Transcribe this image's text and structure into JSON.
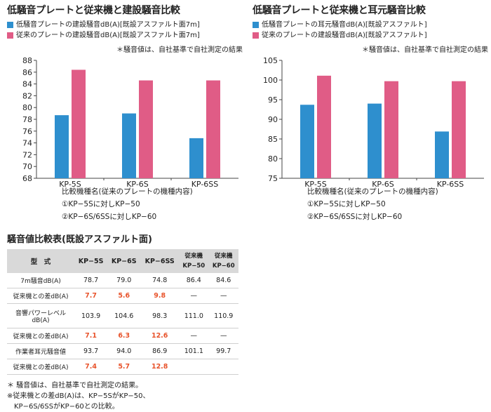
{
  "chart_data": [
    {
      "type": "bar",
      "title": "低騒音プレートと従来機と建設騒音比較",
      "categories": [
        "KP-5S",
        "KP-6S",
        "KP-6SS"
      ],
      "series": [
        {
          "name": "低騒音プレートの建設騒音dB(A)[既設アスファルト面7m]",
          "color": "#2e8fce",
          "values": [
            78.7,
            79.0,
            74.8
          ]
        },
        {
          "name": "従来のプレートの建設騒音dB(A)[既設アスファルト面7m]",
          "color": "#e05c86",
          "values": [
            86.4,
            84.6,
            84.6
          ]
        }
      ],
      "note": "＊騒音値は、自社基準で自社測定の結果",
      "ylim": [
        68,
        88
      ],
      "yticks": [
        68,
        70,
        72,
        74,
        76,
        78,
        80,
        82,
        84,
        86,
        88
      ],
      "xlabel": "比較機種名(従来のプレートの機種内容)",
      "xnotes": [
        "①KP−5Sに対しKP−50",
        "②KP−6S/6SSに対しKP−60"
      ]
    },
    {
      "type": "bar",
      "title": "低騒音プレートと従来機と耳元騒音比較",
      "categories": [
        "KP-5S",
        "KP-6S",
        "KP-6SS"
      ],
      "series": [
        {
          "name": "低騒音プレートの耳元騒音dB(A)[既設アスファルト]",
          "color": "#2e8fce",
          "values": [
            93.7,
            94.0,
            86.9
          ]
        },
        {
          "name": "従来のプレートの建設騒音dB(A)[既設アスファルト]",
          "color": "#e05c86",
          "values": [
            101.1,
            99.7,
            99.7
          ]
        }
      ],
      "note": "＊騒音値は、自社基準で自社測定の結果",
      "ylim": [
        75,
        105
      ],
      "yticks": [
        75,
        80,
        85,
        90,
        95,
        100,
        105
      ],
      "xlabel": "比較機種名(従来のプレートの機種内容)",
      "xnotes": [
        "①KP−5Sに対しKP−50",
        "②KP−6S/6SSに対しKP−60"
      ]
    }
  ],
  "table": {
    "title": "騒音値比較表(既設アスファルト面)",
    "headers": [
      "型　式",
      "KP−5S",
      "KP−6S",
      "KP−6SS",
      "従来機 KP−50",
      "従来機 KP−60"
    ],
    "header_top": [
      "従来機",
      "従来機"
    ],
    "header_bottom": [
      "KP−50",
      "KP−60"
    ],
    "rows": [
      {
        "label": "7m騒音dB(A)",
        "values": [
          "78.7",
          "79.0",
          "74.8",
          "86.4",
          "84.6"
        ]
      },
      {
        "label": "従来機との差dB(A)",
        "values": [
          "7.7",
          "5.6",
          "9.8",
          "—",
          "—"
        ]
      },
      {
        "label": "音響パワーレベル dB(A)",
        "values": [
          "103.9",
          "104.6",
          "98.3",
          "111.0",
          "110.9"
        ]
      },
      {
        "label": "従来機との差dB(A)",
        "values": [
          "7.1",
          "6.3",
          "12.6",
          "—",
          "—"
        ]
      },
      {
        "label": "作業者耳元騒音値",
        "values": [
          "93.7",
          "94.0",
          "86.9",
          "101.1",
          "99.7"
        ]
      },
      {
        "label": "従来機との差dB(A)",
        "values": [
          "7.4",
          "5.7",
          "12.8",
          "",
          ""
        ]
      }
    ],
    "footnotes": [
      "＊ 騒音値は、自社基準で自社測定の結果。",
      "※従来機との差dB(A)は、KP−5SがKP−50、",
      "　KP−6S/6SSがKP−60との比較。"
    ]
  }
}
